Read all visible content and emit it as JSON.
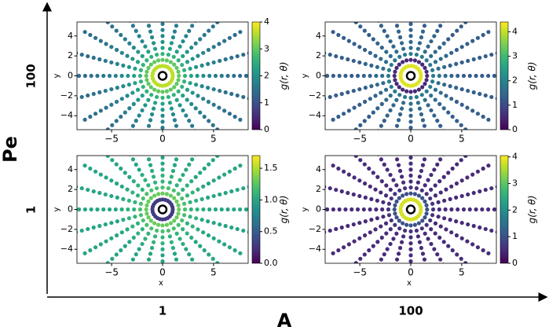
{
  "figure": {
    "row_label": "Pe",
    "col_label": "A",
    "rows": [
      "100",
      "1"
    ],
    "cols": [
      "1",
      "100"
    ]
  },
  "chart_data": [
    {
      "type": "scatter",
      "ylabel": "y",
      "colorbar_label": "g(r, θ)",
      "xlim": [
        -8.4,
        8.4
      ],
      "ylim": [
        -5.4,
        5.4
      ],
      "xticks": [
        {
          "value": -5,
          "label": "−5"
        },
        0,
        5
      ],
      "yticks": [
        {
          "value": -4,
          "label": "−4"
        },
        {
          "value": -2,
          "label": "−2"
        },
        0,
        2,
        4
      ],
      "r": [
        1.0,
        1.6,
        2.2,
        2.8,
        3.4,
        4.0,
        4.6,
        5.2,
        5.8,
        6.4,
        7.0,
        7.6,
        8.2,
        8.8
      ],
      "theta": [
        0,
        15,
        30,
        45,
        60,
        75,
        90,
        105,
        120,
        135,
        150,
        165,
        180,
        195,
        210,
        225,
        240,
        255,
        270,
        285,
        300,
        315,
        330,
        345
      ],
      "g": [
        3.6,
        3.0,
        2.6,
        2.3,
        2.1,
        1.9,
        1.8,
        1.7,
        1.6,
        1.5,
        1.5,
        1.4,
        1.4,
        1.4
      ],
      "clim": [
        0,
        4
      ],
      "cticks": [
        0,
        1,
        2,
        3,
        4
      ]
    },
    {
      "type": "scatter",
      "ylabel": "y",
      "colorbar_label": "g(r, θ)",
      "xlim": [
        -8.4,
        8.4
      ],
      "ylim": [
        -5.4,
        5.4
      ],
      "xticks": [
        {
          "value": -5,
          "label": "−5"
        },
        0,
        5
      ],
      "yticks": [
        {
          "value": -4,
          "label": "−4"
        },
        {
          "value": -2,
          "label": "−2"
        },
        0,
        2,
        4
      ],
      "r": [
        1.0,
        1.6,
        2.2,
        2.8,
        3.4,
        4.0,
        4.6,
        5.2,
        5.8,
        6.4,
        7.0,
        7.6,
        8.2,
        8.8
      ],
      "theta": [
        0,
        15,
        30,
        45,
        60,
        75,
        90,
        105,
        120,
        135,
        150,
        165,
        180,
        195,
        210,
        225,
        240,
        255,
        270,
        285,
        300,
        315,
        330,
        345
      ],
      "g": [
        4.2,
        0.5,
        1.8,
        1.6,
        1.5,
        1.4,
        1.4,
        1.3,
        1.3,
        1.3,
        1.3,
        1.3,
        1.3,
        1.3
      ],
      "clim": [
        0,
        4.4
      ],
      "cticks": [
        0,
        1,
        2,
        3,
        4
      ]
    },
    {
      "type": "scatter",
      "xlabel": "x",
      "ylabel": "y",
      "colorbar_label": "g(r, θ)",
      "xlim": [
        -8.4,
        8.4
      ],
      "ylim": [
        -5.4,
        5.4
      ],
      "xticks": [
        {
          "value": -5,
          "label": "−5"
        },
        0,
        5
      ],
      "yticks": [
        {
          "value": -4,
          "label": "−4"
        },
        {
          "value": -2,
          "label": "−2"
        },
        0,
        2,
        4
      ],
      "r": [
        1.0,
        1.6,
        2.2,
        2.8,
        3.4,
        4.0,
        4.6,
        5.2,
        5.8,
        6.4,
        7.0,
        7.6,
        8.2,
        8.8
      ],
      "theta": [
        0,
        15,
        30,
        45,
        60,
        75,
        90,
        105,
        120,
        135,
        150,
        165,
        180,
        195,
        210,
        225,
        240,
        255,
        270,
        285,
        300,
        315,
        330,
        345
      ],
      "g": [
        0.3,
        1.3,
        1.2,
        1.1,
        1.1,
        1.05,
        1.0,
        1.0,
        1.0,
        1.0,
        1.0,
        1.0,
        1.0,
        1.0
      ],
      "clim": [
        0,
        1.7
      ],
      "cticks": [
        {
          "value": 0,
          "label": "0.0"
        },
        0.5,
        {
          "value": 1,
          "label": "1.0"
        },
        1.5
      ]
    },
    {
      "type": "scatter",
      "xlabel": "x",
      "ylabel": "y",
      "colorbar_label": "g(r, θ)",
      "xlim": [
        -8.4,
        8.4
      ],
      "ylim": [
        -5.4,
        5.4
      ],
      "xticks": [
        {
          "value": -5,
          "label": "−5"
        },
        0,
        5
      ],
      "yticks": [
        {
          "value": -4,
          "label": "−4"
        },
        {
          "value": -2,
          "label": "−2"
        },
        0,
        2,
        4
      ],
      "r": [
        1.0,
        1.6,
        2.2,
        2.8,
        3.4,
        4.0,
        4.6,
        5.2,
        5.8,
        6.4,
        7.0,
        7.6,
        8.2,
        8.8
      ],
      "theta": [
        0,
        15,
        30,
        45,
        60,
        75,
        90,
        105,
        120,
        135,
        150,
        165,
        180,
        195,
        210,
        225,
        240,
        255,
        270,
        285,
        300,
        315,
        330,
        345
      ],
      "g": [
        3.8,
        1.0,
        0.6,
        0.5,
        0.5,
        0.5,
        0.5,
        0.5,
        0.5,
        0.5,
        0.5,
        0.5,
        0.5,
        0.5
      ],
      "clim": [
        0,
        4.05
      ],
      "cticks": [
        0,
        1,
        2,
        3,
        4
      ]
    }
  ]
}
